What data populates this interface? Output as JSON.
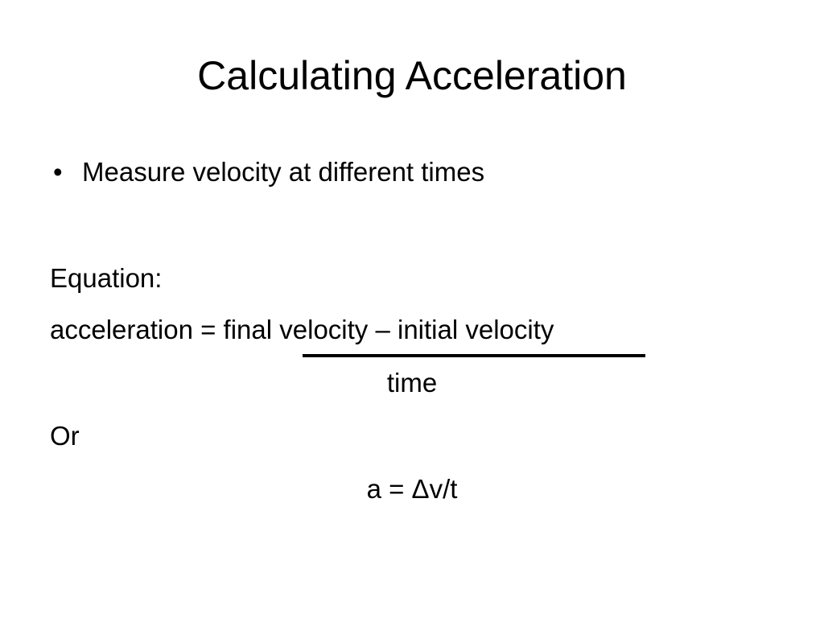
{
  "slide": {
    "title": "Calculating Acceleration",
    "bullet": {
      "symbol": "•",
      "text": "Measure velocity at different times"
    },
    "equation_label": "Equation:",
    "equation_numerator": "acceleration = final velocity – initial velocity",
    "equation_denominator": "time",
    "or_label": "Or",
    "short_equation": "a = Δv/t"
  }
}
